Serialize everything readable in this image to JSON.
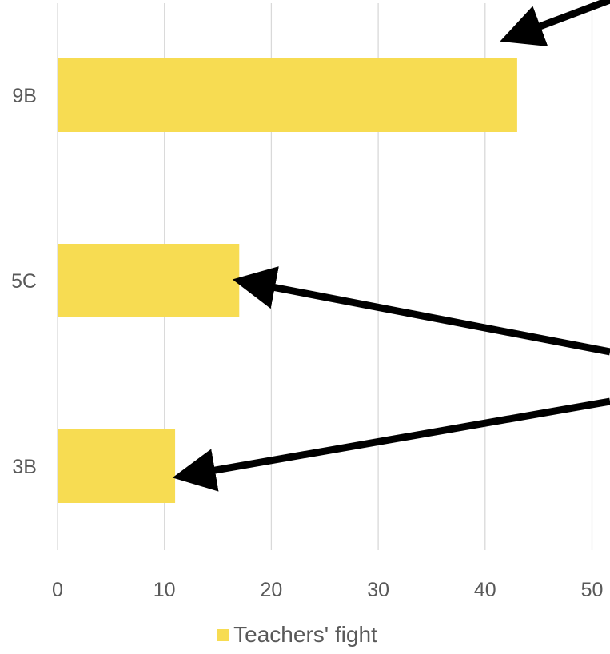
{
  "chart_data": {
    "type": "bar",
    "orientation": "horizontal",
    "categories": [
      "9B",
      "5C",
      "3B"
    ],
    "series": [
      {
        "name": "Teachers' fight",
        "values": [
          43,
          17,
          11
        ],
        "color": "#f7dc52"
      }
    ],
    "x_ticks": [
      "0",
      "10",
      "20",
      "30",
      "40",
      "50"
    ],
    "xlim": [
      0,
      50
    ],
    "grid": "vertical",
    "legend": "bottom",
    "annotations": [
      {
        "type": "arrow",
        "target": "9B"
      },
      {
        "type": "arrow",
        "target": "5C"
      },
      {
        "type": "arrow",
        "target": "3B"
      }
    ]
  },
  "colors": {
    "bar": "#f7dc52",
    "grid": "#d9d9d9",
    "text": "#595959",
    "arrow": "#000000"
  }
}
